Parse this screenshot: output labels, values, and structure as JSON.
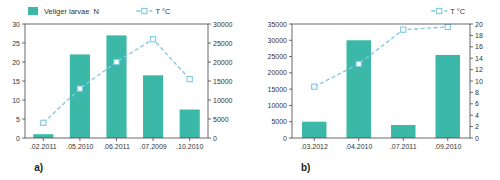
{
  "chart_data": [
    {
      "type": "bar",
      "title": "a)",
      "categories": [
        ".02.2011",
        ".05.2010",
        ".06.2011",
        ".07.2009",
        ".10.2010"
      ],
      "series": [
        {
          "name": "Veliger larvae  N",
          "type": "bar",
          "color": "#3cb8a8",
          "axis": "y2",
          "values": [
            1000,
            22000,
            27000,
            16500,
            7500
          ]
        },
        {
          "name": "T °C",
          "type": "line",
          "color": "#7ec8e3",
          "marker": "square",
          "line_style": "dashed",
          "values": [
            4,
            13,
            20,
            26,
            15.5
          ]
        }
      ],
      "ylim": [
        0,
        30
      ],
      "yticks": [
        0,
        5,
        10,
        15,
        20,
        25,
        30
      ],
      "y2lim": [
        0,
        30000
      ],
      "y2ticks": [
        0,
        5000,
        10000,
        15000,
        20000,
        25000,
        30000
      ],
      "legend": "top left"
    },
    {
      "type": "bar",
      "title": "b)",
      "categories": [
        ".03.2012",
        ".04.2010",
        ".07.2011",
        ".09.2010"
      ],
      "series": [
        {
          "type": "bar",
          "color": "#3cb8a8",
          "values": [
            5000,
            30000,
            4000,
            25500
          ]
        },
        {
          "name": "T °C",
          "type": "line",
          "color": "#7ec8e3",
          "marker": "square",
          "line_style": "dashed",
          "axis": "y2",
          "values": [
            9,
            13,
            19,
            19.5
          ]
        }
      ],
      "ylim": [
        0,
        35000
      ],
      "yticks": [
        0,
        5000,
        10000,
        15000,
        20000,
        25000,
        30000,
        35000
      ],
      "y2lim": [
        0,
        20
      ],
      "y2ticks": [
        0,
        2,
        4,
        6,
        8,
        10,
        12,
        14,
        16,
        18,
        20
      ],
      "legend": "top right"
    }
  ]
}
